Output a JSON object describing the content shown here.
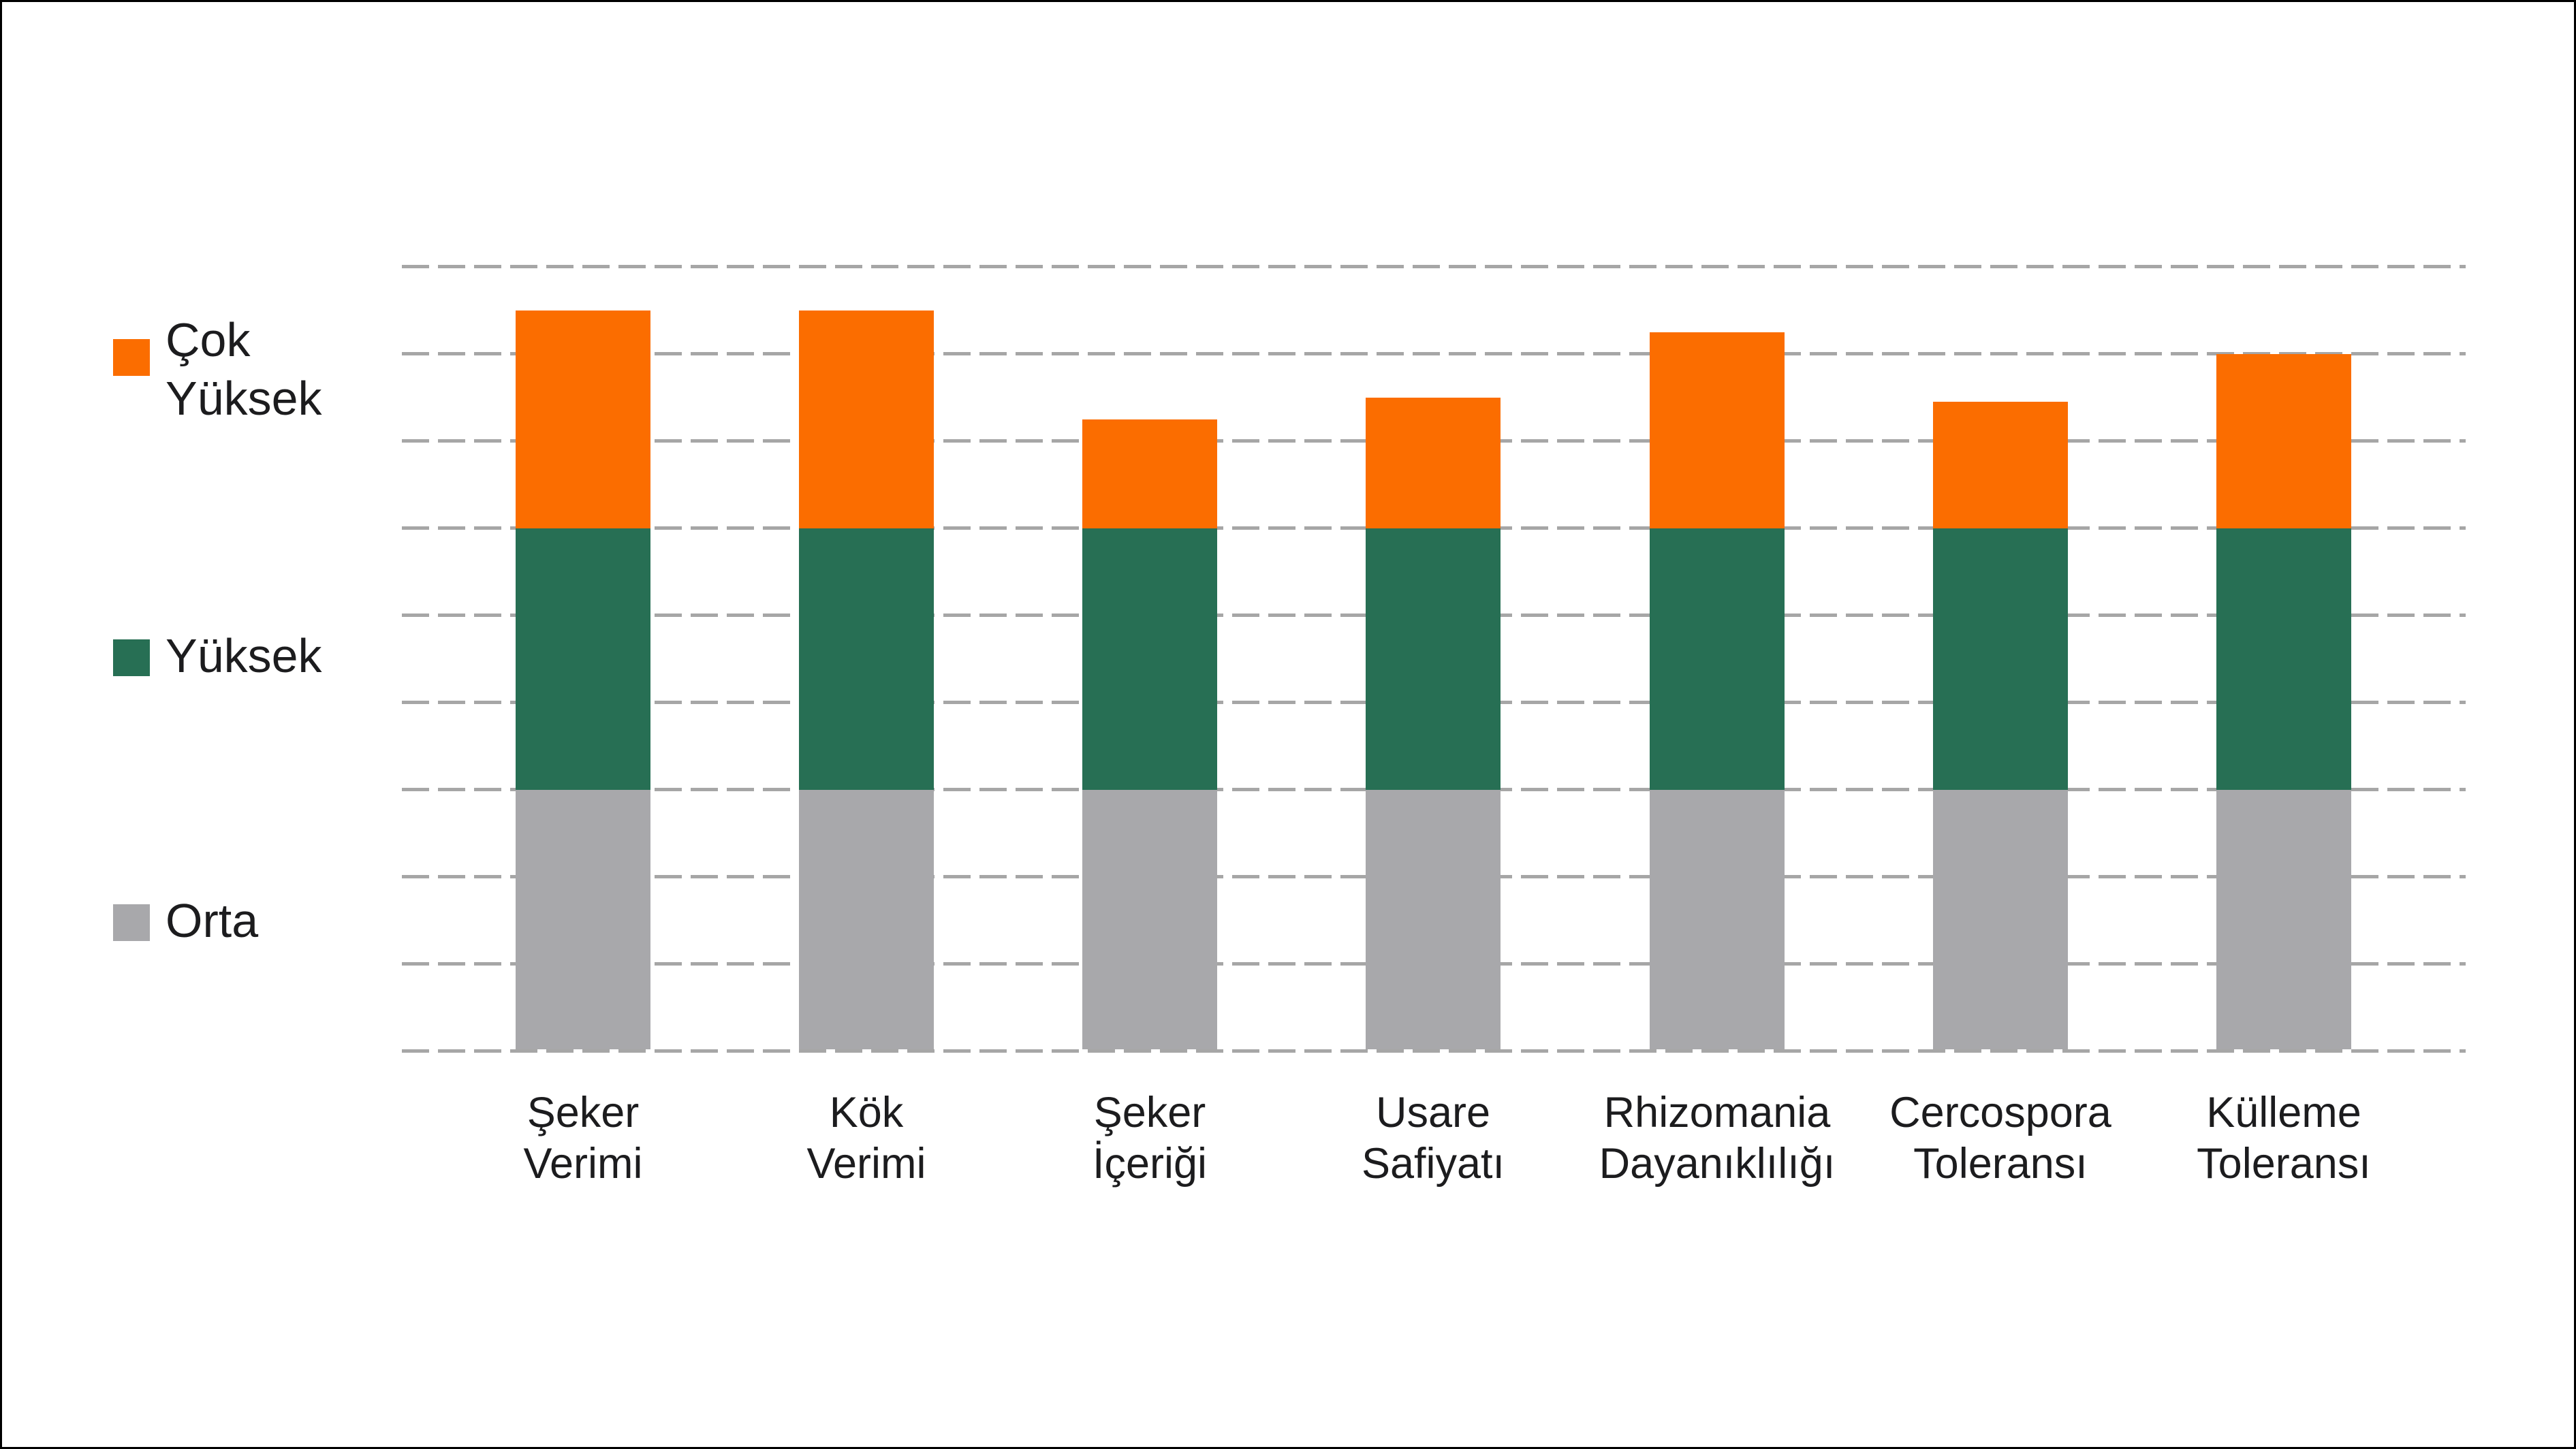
{
  "chart_data": {
    "type": "bar",
    "stacked": true,
    "orientation": "vertical",
    "title": "",
    "categories": [
      "Şeker Verimi",
      "Kök Verimi",
      "Şeker İçeriği",
      "Usare Safiyatı",
      "Rhizomania Dayanıklılığı",
      "Cercospora Toleransı",
      "Külleme Toleransı"
    ],
    "category_lines": [
      [
        "Şeker",
        "Verimi"
      ],
      [
        "Kök",
        "Verimi"
      ],
      [
        "Şeker",
        "İçeriği"
      ],
      [
        "Usare",
        "Safiyatı"
      ],
      [
        "Rhizomania",
        "Dayanıklılığı"
      ],
      [
        "Cercospora",
        "Toleransı"
      ],
      [
        "Külleme",
        "Toleransı"
      ]
    ],
    "series": [
      {
        "name": "Orta",
        "color": "#a8a8ab",
        "values": [
          3,
          3,
          3,
          3,
          3,
          3,
          3
        ]
      },
      {
        "name": "Yüksek",
        "color": "#276f54",
        "values": [
          3,
          3,
          3,
          3,
          3,
          3,
          3
        ]
      },
      {
        "name": "Çok Yüksek",
        "color": "#fb6d00",
        "values": [
          2.5,
          2.5,
          1.25,
          1.5,
          2.25,
          1.45,
          2.0
        ]
      }
    ],
    "stack_totals": [
      8.5,
      8.5,
      7.25,
      7.5,
      8.25,
      7.45,
      8.0
    ],
    "xlabel": "",
    "ylabel": "",
    "ylim": [
      0,
      9
    ],
    "gridline_interval": 1,
    "grid": {
      "horizontal": true,
      "vertical": false,
      "style": "dashed",
      "color": "#a6a6a6"
    },
    "y_tick_labels_visible": false,
    "legend_position": "left"
  },
  "legend": {
    "items": [
      {
        "label": "Çok Yüksek",
        "display": "Çok\nYüksek",
        "color": "#fb6d00"
      },
      {
        "label": "Yüksek",
        "display": "Yüksek",
        "color": "#276f54"
      },
      {
        "label": "Orta",
        "display": "Orta",
        "color": "#a8a8ab"
      }
    ]
  },
  "colors": {
    "very_high": "#fb6d00",
    "high": "#276f54",
    "medium": "#a8a8ab",
    "gridline": "#a6a6a6",
    "text": "#1c1c1e",
    "frame": "#000000",
    "background": "#ffffff"
  }
}
